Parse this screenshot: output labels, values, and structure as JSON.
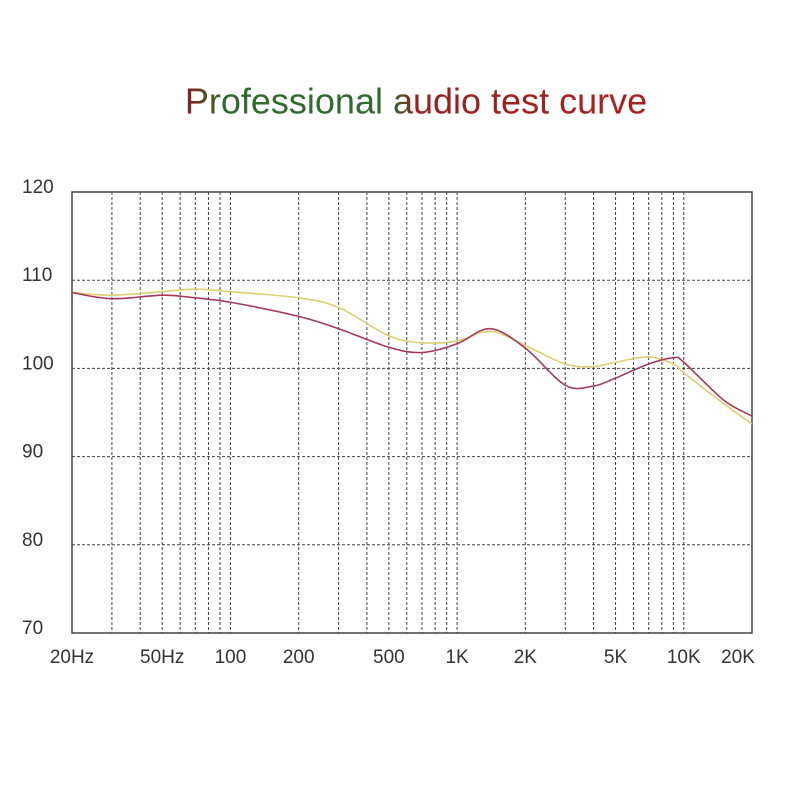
{
  "chart_data": {
    "type": "line",
    "title": "Professional audio test curve",
    "x": [
      20,
      30,
      50,
      70,
      100,
      200,
      300,
      500,
      700,
      1000,
      1400,
      2000,
      3000,
      4000,
      5000,
      7000,
      9000,
      10000,
      15000,
      20000
    ],
    "series": [
      {
        "color": "#ddd072",
        "values": [
          108.6,
          108.3,
          108.7,
          109.0,
          108.7,
          108.0,
          106.9,
          103.7,
          102.9,
          103.1,
          104.2,
          102.6,
          100.5,
          100.2,
          100.7,
          101.3,
          100.5,
          99.5,
          96.0,
          93.7
        ]
      },
      {
        "color": "#a8385a",
        "values": [
          108.6,
          107.9,
          108.3,
          108.0,
          107.5,
          105.9,
          104.5,
          102.4,
          101.8,
          102.8,
          104.5,
          102.3,
          98.1,
          98.0,
          98.9,
          100.5,
          101.2,
          100.7,
          96.4,
          94.6
        ]
      }
    ],
    "xscale": "log",
    "xlim": [
      20,
      20000
    ],
    "xticks": [
      {
        "value": 20,
        "label": "20Hz"
      },
      {
        "value": 50,
        "label": "50Hz"
      },
      100,
      200,
      500,
      {
        "value": 1000,
        "label": "1K"
      },
      {
        "value": 2000,
        "label": "2K"
      },
      {
        "value": 5000,
        "label": "5K"
      },
      {
        "value": 10000,
        "label": "10K"
      },
      {
        "value": 20000,
        "label": "20K"
      }
    ],
    "xgrid_minor": [
      30,
      40,
      60,
      70,
      80,
      90,
      300,
      400,
      600,
      700,
      800,
      900,
      3000,
      4000,
      6000,
      7000,
      8000,
      9000
    ],
    "ylim": [
      70,
      120
    ],
    "yticks": [
      70,
      80,
      90,
      100,
      110,
      120
    ],
    "grid": true
  }
}
